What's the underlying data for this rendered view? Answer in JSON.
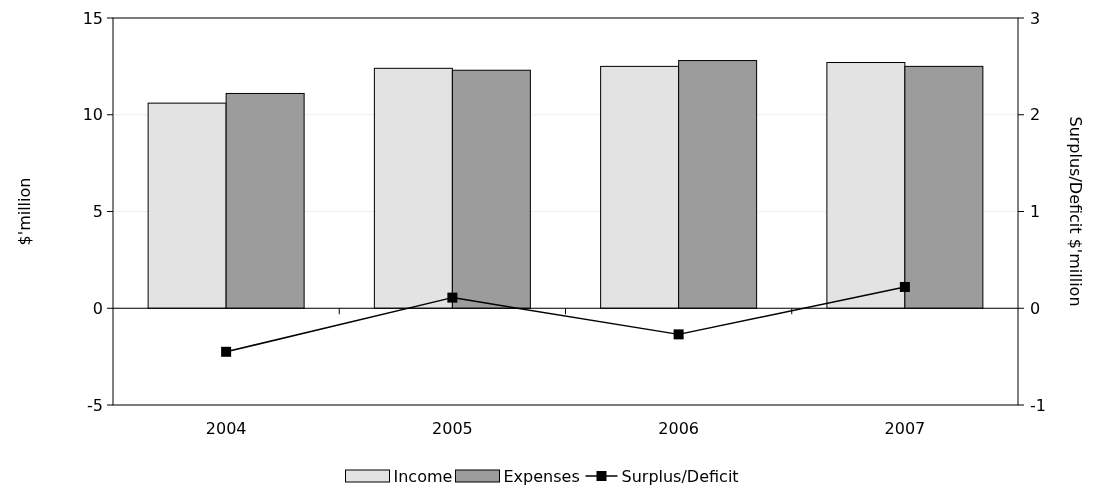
{
  "chart_data": {
    "type": "bar",
    "categories": [
      "2004",
      "2005",
      "2006",
      "2007"
    ],
    "ylabel": "$'million",
    "y2label": "Surplus/Deficit $'million",
    "ylim": [
      -5,
      15
    ],
    "yticks": [
      -5,
      0,
      5,
      10,
      15
    ],
    "y2lim": [
      -1,
      3
    ],
    "y2ticks": [
      -1,
      0,
      1,
      2,
      3
    ],
    "grid": "y",
    "legend": "bottom",
    "series": [
      {
        "name": "Income",
        "color": "#e3e3e3",
        "values": [
          10.6,
          12.4,
          12.5,
          12.7
        ]
      },
      {
        "name": "Expenses",
        "color": "#9c9c9c",
        "values": [
          11.1,
          12.3,
          12.8,
          12.5
        ]
      },
      {
        "name": "Surplus/Deficit",
        "type": "line",
        "axis": "y2",
        "color": "#000000",
        "marker": "square",
        "values": [
          -0.45,
          0.11,
          -0.27,
          0.22
        ]
      }
    ]
  }
}
